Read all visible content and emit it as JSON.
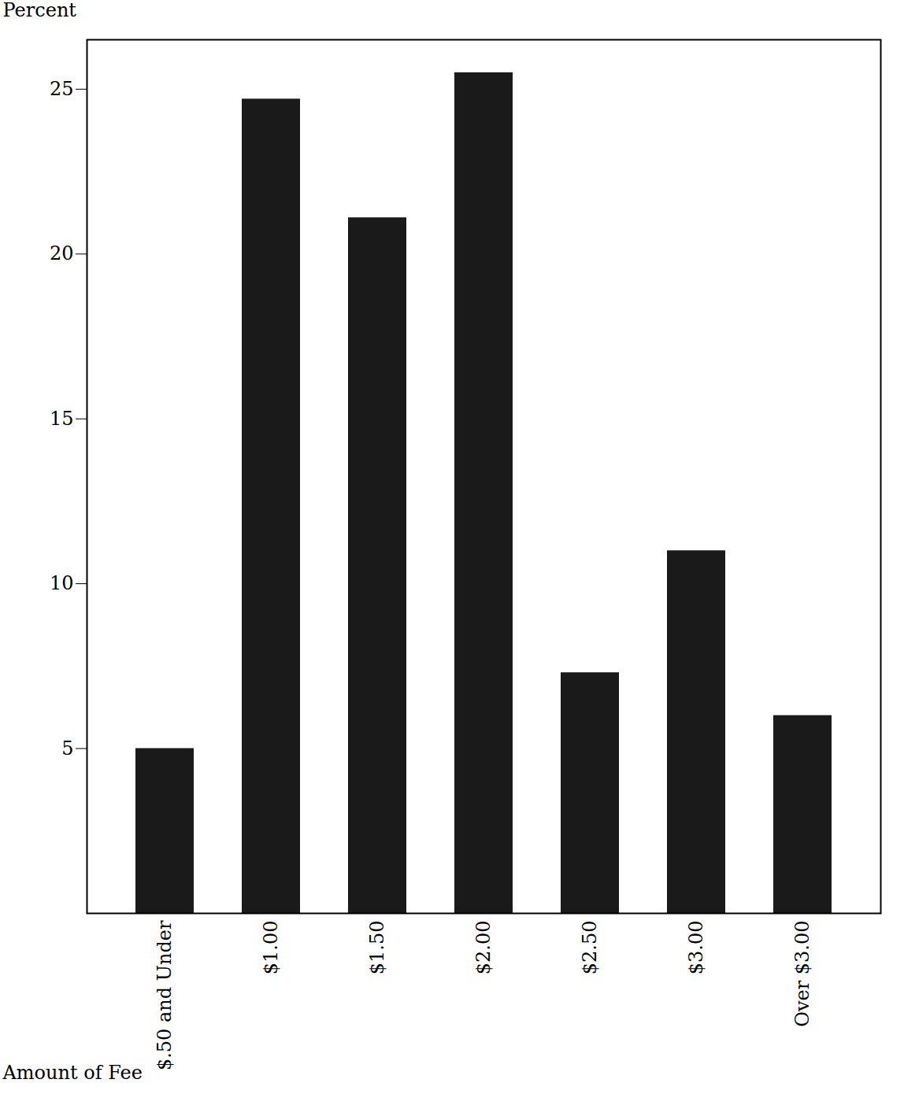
{
  "chart_data": {
    "type": "bar",
    "categories": [
      "$.50 and Under",
      "$1.00",
      "$1.50",
      "$2.00",
      "$2.50",
      "$3.00",
      "Over $3.00"
    ],
    "values": [
      5.0,
      24.7,
      21.1,
      25.5,
      7.3,
      11.0,
      6.0
    ],
    "color": "#1a1a1a",
    "x_label": "Amount of Fee",
    "y_label": "Percent",
    "ylim": [
      0,
      26.5
    ],
    "yticks": [
      5,
      10,
      15,
      20,
      25
    ],
    "grid": false
  }
}
